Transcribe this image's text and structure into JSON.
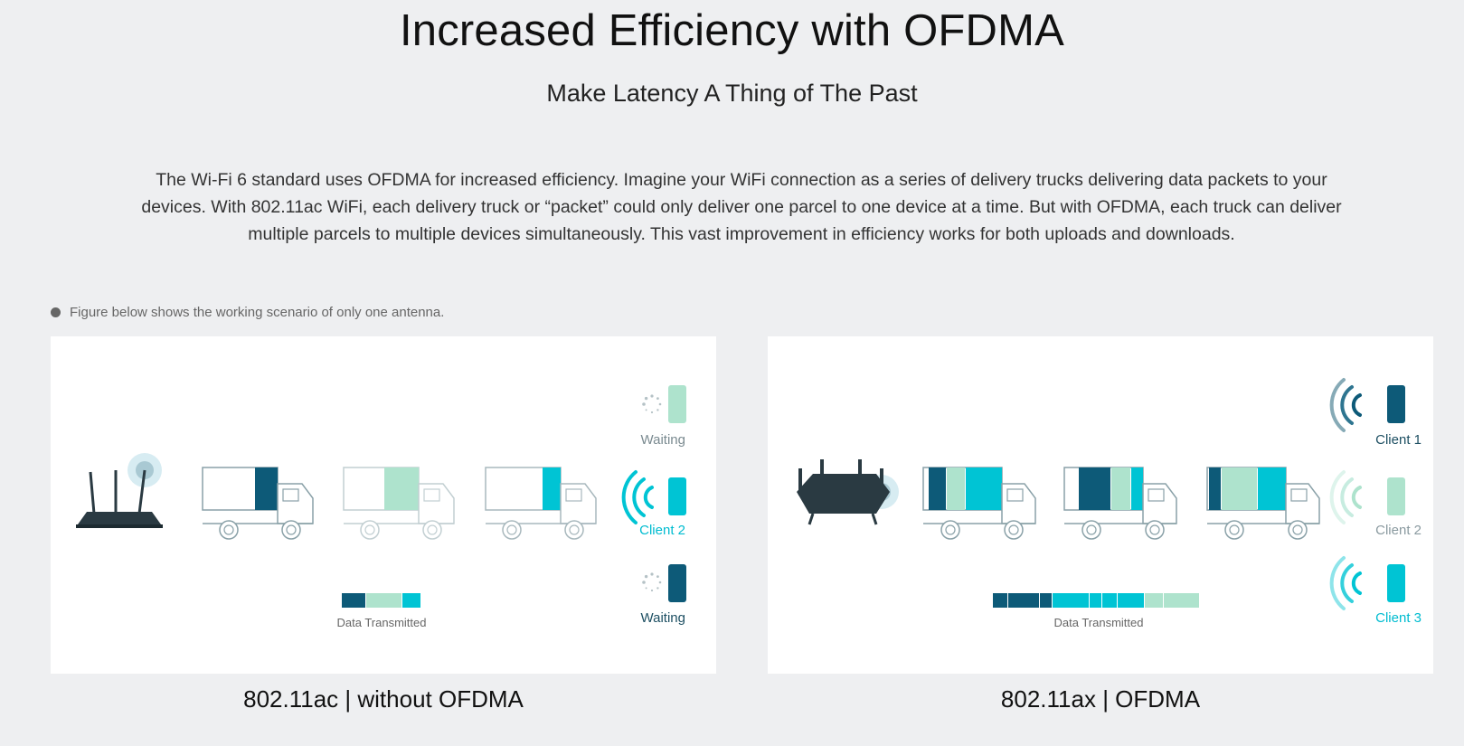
{
  "header": {
    "title": "Increased Efficiency with OFDMA",
    "subtitle": "Make Latency A Thing of The Past"
  },
  "description": "The Wi-Fi 6 standard uses OFDMA for increased efficiency. Imagine your WiFi connection as a series of delivery trucks delivering data packets to your devices. With 802.11ac WiFi, each delivery truck or “packet” could only deliver one parcel to one device at a time. But with OFDMA, each truck can deliver multiple parcels to multiple devices simultaneously. This vast improvement in efficiency works for both uploads and downloads.",
  "note": "Figure below shows the working scenario of only one antenna.",
  "colors": {
    "dark_teal": "#0d5a78",
    "mint": "#aee3cd",
    "cyan": "#00c4d4",
    "router": "#2a3a42",
    "background": "#eeeff1"
  },
  "panels": [
    {
      "caption": "802.11ac | without OFDMA",
      "data_label": "Data Transmitted",
      "clients": [
        {
          "label": "Waiting",
          "state": "waiting",
          "color": "mint"
        },
        {
          "label": "Client 2",
          "state": "active",
          "color": "cyan"
        },
        {
          "label": "Waiting",
          "state": "waiting",
          "color": "dark_teal"
        }
      ]
    },
    {
      "caption": "802.11ax | OFDMA",
      "data_label": "Data Transmitted",
      "clients": [
        {
          "label": "Client 1",
          "state": "active",
          "color": "dark_teal"
        },
        {
          "label": "Client 2",
          "state": "active",
          "color": "mint"
        },
        {
          "label": "Client 3",
          "state": "active",
          "color": "cyan"
        }
      ]
    }
  ]
}
